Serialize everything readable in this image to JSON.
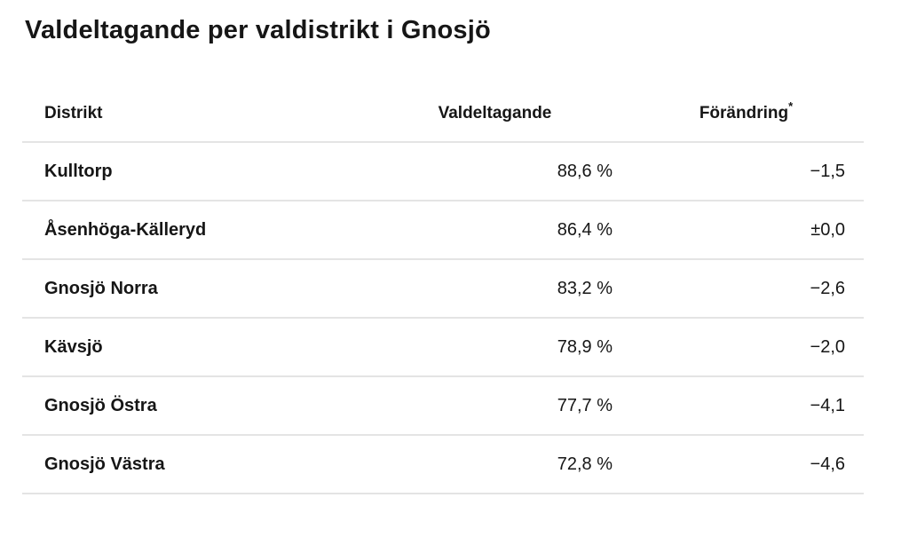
{
  "page": {
    "title": "Valdeltagande per valdistrikt i Gnosjö"
  },
  "table": {
    "columns": [
      {
        "label": "Distrikt"
      },
      {
        "label": "Valdeltagande"
      },
      {
        "label": "Förändring",
        "sup": "*"
      }
    ],
    "rows": [
      {
        "district": "Kulltorp",
        "turnout": "88,6 %",
        "change": "−1,5"
      },
      {
        "district": "Åsenhöga-Källeryd",
        "turnout": "86,4 %",
        "change": "±0,0"
      },
      {
        "district": "Gnosjö Norra",
        "turnout": "83,2 %",
        "change": "−2,6"
      },
      {
        "district": "Kävsjö",
        "turnout": "78,9 %",
        "change": "−2,0"
      },
      {
        "district": "Gnosjö Östra",
        "turnout": "77,7 %",
        "change": "−4,1"
      },
      {
        "district": "Gnosjö Västra",
        "turnout": "72,8 %",
        "change": "−4,6"
      }
    ]
  },
  "chart_data": {
    "type": "table",
    "title": "Valdeltagande per valdistrikt i Gnosjö",
    "columns": [
      "Distrikt",
      "Valdeltagande",
      "Förändring*"
    ],
    "rows": [
      [
        "Kulltorp",
        "88,6 %",
        "−1,5"
      ],
      [
        "Åsenhöga-Källeryd",
        "86,4 %",
        "±0,0"
      ],
      [
        "Gnosjö Norra",
        "83,2 %",
        "−2,6"
      ],
      [
        "Kävsjö",
        "78,9 %",
        "−2,0"
      ],
      [
        "Gnosjö Östra",
        "77,7 %",
        "−4,1"
      ],
      [
        "Gnosjö Västra",
        "72,8 %",
        "−4,6"
      ]
    ],
    "turnout_percent": [
      88.6,
      86.4,
      83.2,
      78.9,
      77.7,
      72.8
    ],
    "change_points": [
      -1.5,
      0.0,
      -2.6,
      -2.0,
      -4.1,
      -4.6
    ],
    "footnote_marker": "*"
  },
  "colors": {
    "background": "#ffffff",
    "text": "#161616",
    "divider": "#e4e4e4"
  }
}
